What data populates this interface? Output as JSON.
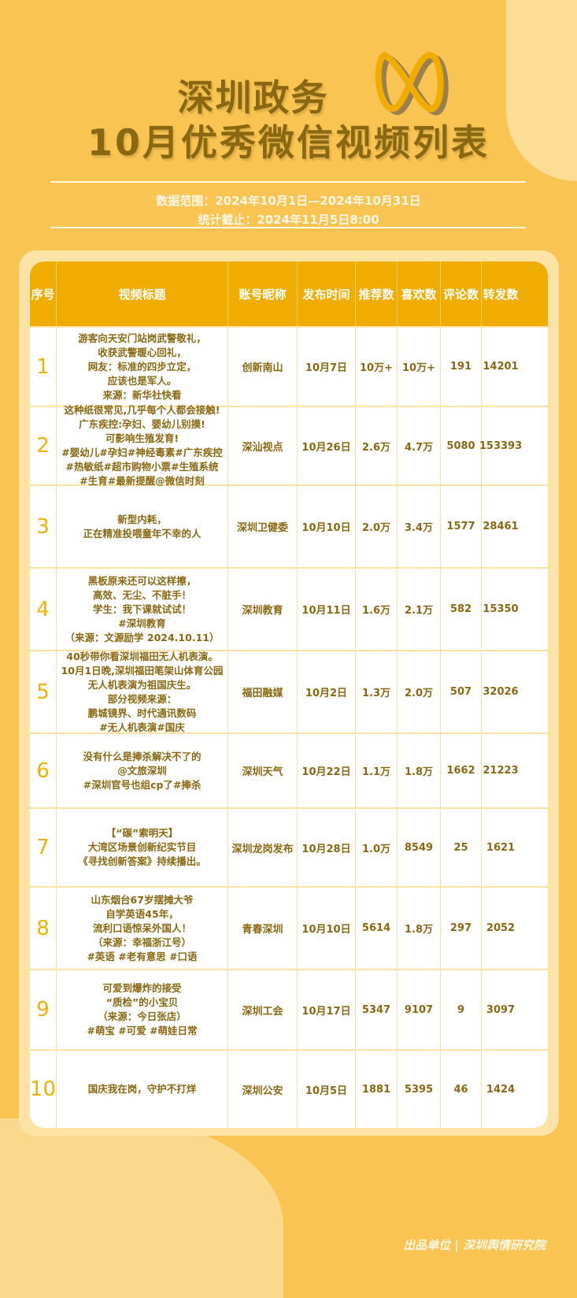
{
  "header": {
    "title_line1": "深圳政务",
    "title_line2": "10月优秀微信视频列表",
    "data_range": "数据范围：2024年10月1日—2024年10月31日",
    "cutoff": "统计截止：2024年11月5日8:00",
    "logo_icon": "wechat-channels-infinity-icon"
  },
  "colors": {
    "background": "#f9c452",
    "header": "#f0ad00",
    "text": "#8a6812",
    "rank": "#f0b000"
  },
  "table": {
    "columns": [
      "序号",
      "视频标题",
      "账号昵称",
      "发布时间",
      "推荐数",
      "喜欢数",
      "评论数",
      "转发数"
    ],
    "rows": [
      {
        "rank": "1",
        "title": [
          "游客向天安门站岗武警敬礼，",
          "收获武警暖心回礼，",
          "网友：标准的四步立定，",
          "应该也是军人。",
          "来源：新华社快看"
        ],
        "account": "创新南山",
        "date": "10月7日",
        "recommend": "10万+",
        "likes": "10万+",
        "comments": "191",
        "shares": "14201"
      },
      {
        "rank": "2",
        "title": [
          "这种纸很常见,几乎每个人都会接触!",
          "广东疾控:孕妇、婴幼儿别摸!",
          "可影响生殖发育!",
          "#婴幼儿#孕妇#神经毒素#广东疾控",
          "#热敏纸#超市购物小票#生殖系统",
          "#生育#最新提醒@微信时刻"
        ],
        "account": "深汕视点",
        "date": "10月26日",
        "recommend": "2.6万",
        "likes": "4.7万",
        "comments": "5080",
        "shares": "153393"
      },
      {
        "rank": "3",
        "title": [
          "新型内耗，",
          "正在精准投喂童年不幸的人"
        ],
        "account": "深圳卫健委",
        "date": "10月10日",
        "recommend": "2.0万",
        "likes": "3.4万",
        "comments": "1577",
        "shares": "28461"
      },
      {
        "rank": "4",
        "title": [
          "黑板原来还可以这样擦，",
          "高效、无尘、不脏手！",
          "学生：我下课就试试！",
          "#深圳教育",
          "（来源：文源励学 2024.10.11）"
        ],
        "account": "深圳教育",
        "date": "10月11日",
        "recommend": "1.6万",
        "likes": "2.1万",
        "comments": "582",
        "shares": "15350"
      },
      {
        "rank": "5",
        "title": [
          "40秒带你看深圳福田无人机表演。",
          "10月1日晚,深圳福田笔架山体育公园",
          "无人机表演为祖国庆生。",
          "部分视频来源：",
          "鹏城镜界、时代通讯数码",
          "#无人机表演#国庆"
        ],
        "account": "福田融媒",
        "date": "10月2日",
        "recommend": "1.3万",
        "likes": "2.0万",
        "comments": "507",
        "shares": "32026"
      },
      {
        "rank": "6",
        "title": [
          "没有什么是捧杀解决不了的",
          "@文旅深圳",
          "#深圳官号也组cp了#捧杀"
        ],
        "account": "深圳天气",
        "date": "10月22日",
        "recommend": "1.1万",
        "likes": "1.8万",
        "comments": "1662",
        "shares": "21223"
      },
      {
        "rank": "7",
        "title": [
          "【“碳”索明天】",
          "大湾区场景创新纪实节目",
          "《寻找创新答案》持续播出。"
        ],
        "account": "深圳龙岗发布",
        "date": "10月28日",
        "recommend": "1.0万",
        "likes": "8549",
        "comments": "25",
        "shares": "1621"
      },
      {
        "rank": "8",
        "title": [
          "山东烟台67岁摆摊大爷",
          "自学英语45年，",
          "流利口语惊呆外国人！",
          "（来源：幸福浙江号）",
          "#英语 #老有意思 #口语"
        ],
        "account": "青春深圳",
        "date": "10月10日",
        "recommend": "5614",
        "likes": "1.8万",
        "comments": "297",
        "shares": "2052"
      },
      {
        "rank": "9",
        "title": [
          "可爱到爆炸的接受",
          "“质检”的小宝贝",
          "（来源：今日张店）",
          "#萌宝 #可爱 #萌娃日常"
        ],
        "account": "深圳工会",
        "date": "10月17日",
        "recommend": "5347",
        "likes": "9107",
        "comments": "9",
        "shares": "3097"
      },
      {
        "rank": "10",
        "title": [
          "国庆我在岗，守护不打烊"
        ],
        "account": "深圳公安",
        "date": "10月5日",
        "recommend": "1881",
        "likes": "5395",
        "comments": "46",
        "shares": "1424"
      }
    ]
  },
  "footer": {
    "credit": "出品单位 | 深圳舆情研究院"
  }
}
